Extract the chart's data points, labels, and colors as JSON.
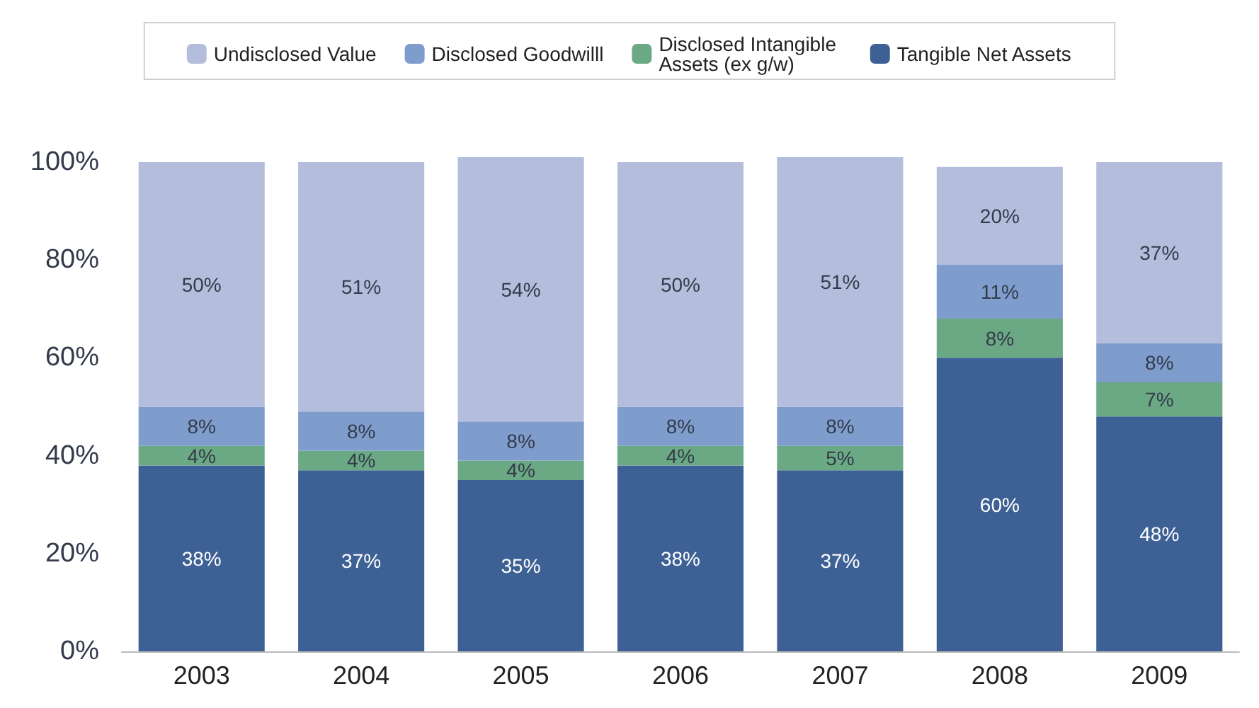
{
  "chart_data": {
    "type": "bar",
    "stacked": true,
    "legend": "top",
    "grid": false,
    "categories": [
      "2003",
      "2004",
      "2005",
      "2006",
      "2007",
      "2008",
      "2009"
    ],
    "ylim": [
      0,
      101
    ],
    "yticks": [
      {
        "value": 0,
        "label": "0%"
      },
      {
        "value": 20,
        "label": "20%"
      },
      {
        "value": 40,
        "label": "40%"
      },
      {
        "value": 60,
        "label": "60%"
      },
      {
        "value": 80,
        "label": "80%"
      },
      {
        "value": 100,
        "label": "100%"
      }
    ],
    "series": [
      {
        "name": "Tangible Net Assets",
        "color": "#3e6195",
        "values": [
          38,
          37,
          35,
          38,
          37,
          60,
          48
        ],
        "value_labels": [
          "38%",
          "37%",
          "35%",
          "38%",
          "37%",
          "60%",
          "48%"
        ]
      },
      {
        "name": "Disclosed Intangible Assets (ex g/w)",
        "color": "#6ba884",
        "values": [
          4,
          4,
          4,
          4,
          5,
          8,
          7
        ],
        "value_labels": [
          "4%",
          "4%",
          "4%",
          "4%",
          "5%",
          "8%",
          "7%"
        ]
      },
      {
        "name": "Disclosed Goodwilll",
        "color": "#7f9dcc",
        "values": [
          8,
          8,
          8,
          8,
          8,
          11,
          8
        ],
        "value_labels": [
          "8%",
          "8%",
          "8%",
          "8%",
          "8%",
          "11%",
          "8%"
        ]
      },
      {
        "name": "Undisclosed Value",
        "color": "#b4bedc",
        "values": [
          50,
          51,
          54,
          50,
          51,
          20,
          37
        ],
        "value_labels": [
          "50%",
          "51%",
          "54%",
          "50%",
          "51%",
          "20%",
          "37%"
        ]
      }
    ]
  }
}
